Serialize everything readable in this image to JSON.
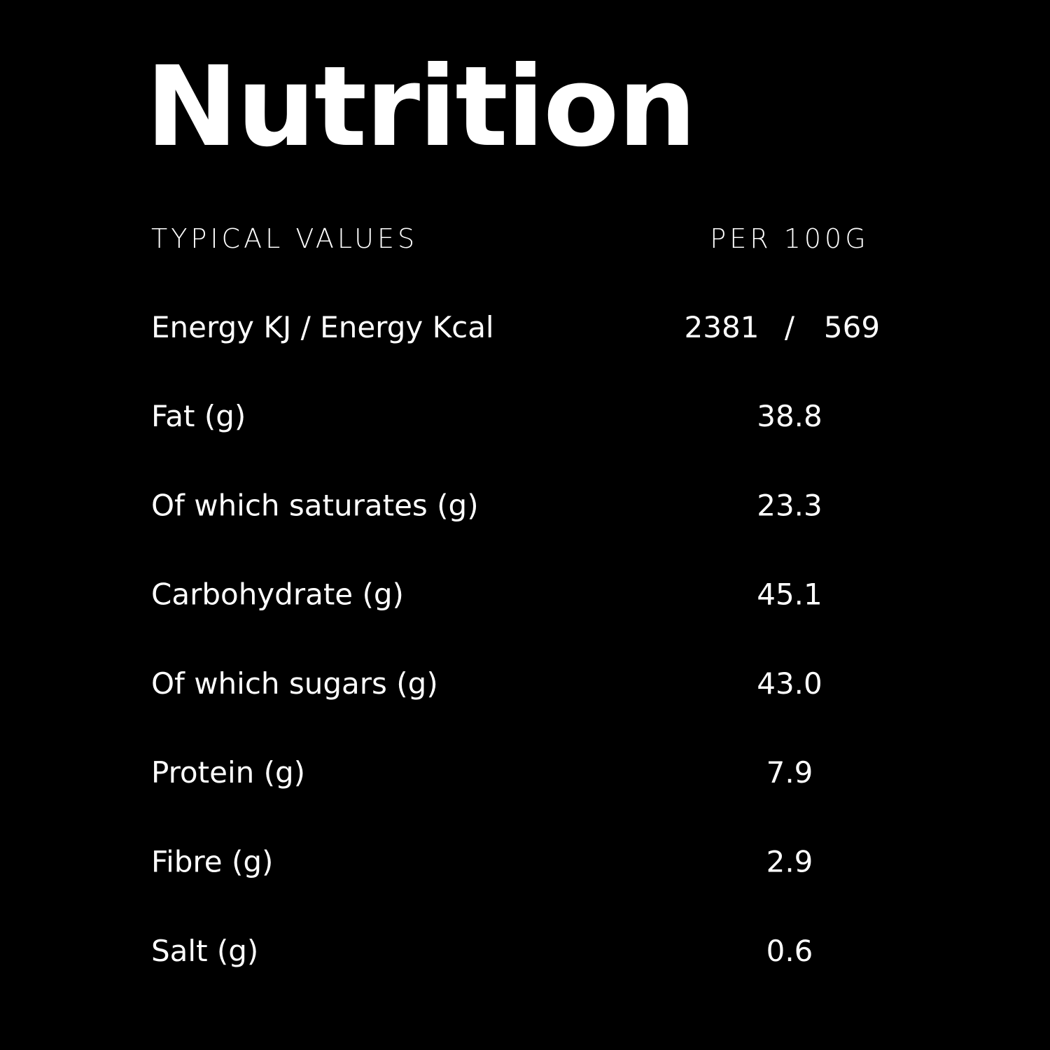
{
  "title": "Nutrition",
  "table": {
    "header": [
      "TYPICAL VALUES",
      "PER 100G"
    ],
    "energy": {
      "label": "Energy KJ / Energy Kcal",
      "kj": "2381",
      "separator": "/",
      "kcal": "569"
    },
    "rows": [
      [
        "Fat (g)",
        "38.8"
      ],
      [
        "Of which saturates (g)",
        "23.3"
      ],
      [
        "Carbohydrate (g)",
        "45.1"
      ],
      [
        "Of which sugars (g)",
        "43.0"
      ],
      [
        "Protein (g)",
        "7.9"
      ],
      [
        "Fibre (g)",
        "2.9"
      ],
      [
        "Salt (g)",
        "0.6"
      ]
    ]
  }
}
